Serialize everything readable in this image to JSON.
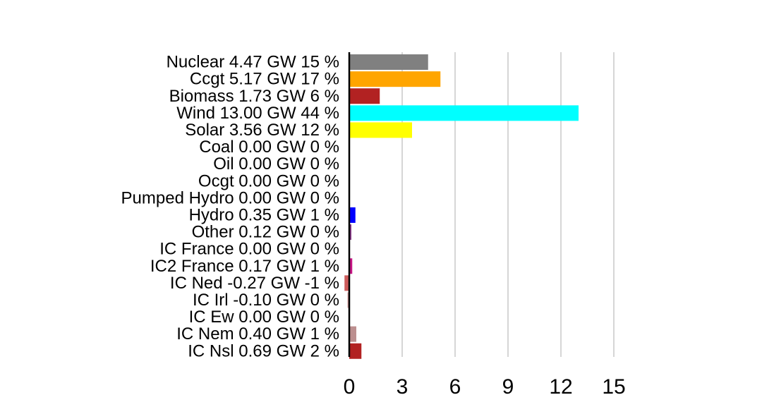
{
  "chart_data": {
    "type": "bar",
    "orientation": "horizontal",
    "categories": [
      "Nuclear 4.47 GW 15 %",
      "Ccgt 5.17 GW 17 %",
      "Biomass 1.73 GW 6 %",
      "Wind 13.00 GW 44 %",
      "Solar 3.56 GW 12 %",
      "Coal 0.00 GW 0 %",
      "Oil 0.00 GW 0 %",
      "Ocgt 0.00 GW 0 %",
      "Pumped Hydro 0.00 GW 0 %",
      "Hydro 0.35 GW 1 %",
      "Other 0.12 GW 0 %",
      "IC France 0.00 GW 0 %",
      "IC2 France 0.17 GW 1 %",
      "IC Ned -0.27 GW -1 %",
      "IC Irl -0.10 GW 0 %",
      "IC Ew 0.00 GW 0 %",
      "IC Nem 0.40 GW 1 %",
      "IC Nsl 0.69 GW 2 %"
    ],
    "values": [
      4.47,
      5.17,
      1.73,
      13.0,
      3.56,
      0.0,
      0.0,
      0.0,
      0.0,
      0.35,
      0.12,
      0.0,
      0.17,
      -0.27,
      -0.1,
      0.0,
      0.4,
      0.69
    ],
    "colors": [
      "#808080",
      "#ffa500",
      "#b22222",
      "#00ffff",
      "#ffff00",
      "#000000",
      "#000000",
      "#000000",
      "#000000",
      "#0000ff",
      "#8b3a8b",
      "#000000",
      "#c71585",
      "#cd5c5c",
      "#d8a0a0",
      "#000000",
      "#bc8f8f",
      "#b22222"
    ],
    "xticks": [
      "0",
      "3",
      "6",
      "9",
      "12",
      "15"
    ],
    "xtick_values": [
      0,
      3,
      6,
      9,
      12,
      15
    ],
    "xlim": [
      0,
      15
    ],
    "grid": true,
    "title": "",
    "xlabel": "",
    "ylabel": ""
  }
}
